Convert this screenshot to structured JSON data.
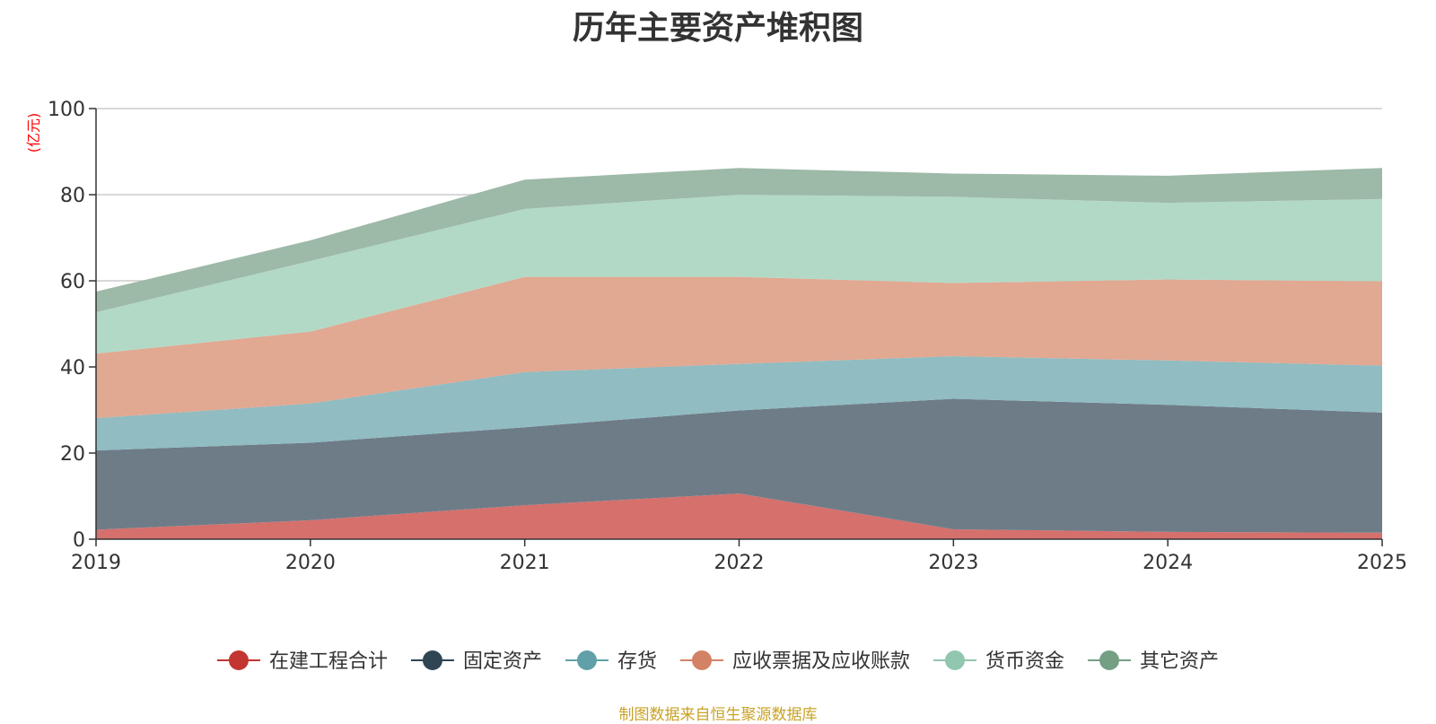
{
  "chart_data": {
    "type": "area",
    "stacked": true,
    "title": "历年主要资产堆积图",
    "ylabel": "(亿元)",
    "xlabel": "",
    "categories": [
      "2019",
      "2020",
      "2021",
      "2022",
      "2023",
      "2024",
      "2025"
    ],
    "ylim": [
      0,
      100
    ],
    "yticks": [
      0,
      20,
      40,
      60,
      80,
      100
    ],
    "grid": true,
    "legend_position": "bottom",
    "series": [
      {
        "name": "在建工程合计",
        "color": "#c23531",
        "fill": "#d5706c",
        "values": [
          2.2,
          4.4,
          7.9,
          10.6,
          2.3,
          1.7,
          1.5
        ]
      },
      {
        "name": "固定资产",
        "color": "#2f4554",
        "fill": "#6e7c88",
        "values": [
          18.4,
          18.0,
          18.1,
          19.3,
          30.3,
          29.5,
          27.9
        ]
      },
      {
        "name": "存货",
        "color": "#61a0a8",
        "fill": "#90bcc2",
        "values": [
          7.5,
          9.1,
          12.8,
          10.8,
          9.9,
          10.3,
          10.9
        ]
      },
      {
        "name": "应收票据及应收账款",
        "color": "#d48265",
        "fill": "#e1a892",
        "values": [
          15.0,
          16.7,
          22.1,
          20.2,
          17.0,
          18.8,
          19.6
        ]
      },
      {
        "name": "货币资金",
        "color": "#91c7ae",
        "fill": "#b2d9c6",
        "values": [
          9.6,
          16.4,
          15.8,
          19.1,
          20.0,
          17.8,
          19.1
        ]
      },
      {
        "name": "其它资产",
        "color": "#749f83",
        "fill": "#9db9a7",
        "values": [
          4.8,
          4.8,
          6.8,
          6.2,
          5.4,
          6.3,
          7.2
        ]
      }
    ]
  },
  "source": "制图数据来自恒生聚源数据库",
  "colors": {
    "title": "#333333",
    "axis": "#333333",
    "grid": "#cccccc",
    "unit": "#ff0000",
    "source": "#c9a227"
  }
}
